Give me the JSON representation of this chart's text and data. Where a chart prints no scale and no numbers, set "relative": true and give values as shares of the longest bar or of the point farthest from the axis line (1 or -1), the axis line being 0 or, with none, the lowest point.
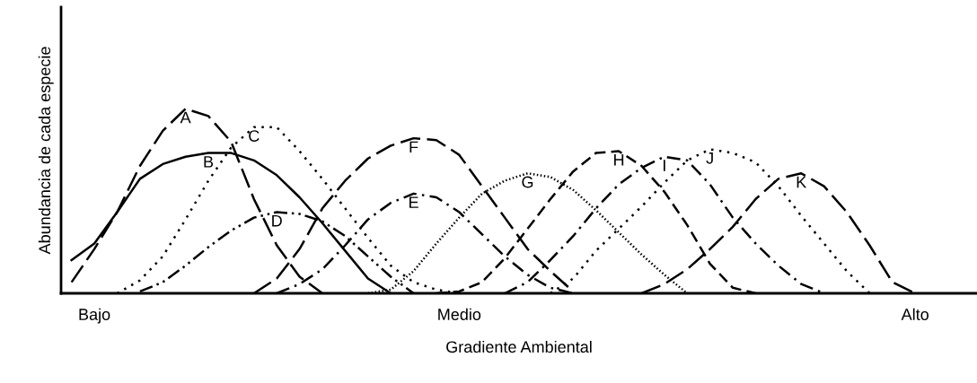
{
  "chart_data": {
    "type": "line",
    "relative": true,
    "xlabel": "Gradiente Ambiental",
    "ylabel": "Abundancia de cada especie",
    "categories": [
      null,
      "Bajo",
      null,
      null,
      null,
      null,
      null,
      null,
      null,
      null,
      null,
      null,
      null,
      null,
      null,
      null,
      null,
      "Medio",
      null,
      null,
      null,
      null,
      null,
      null,
      null,
      null,
      null,
      null,
      null,
      null,
      null,
      null,
      null,
      null,
      null,
      null,
      null,
      "Alto",
      null,
      null
    ],
    "grid": false,
    "legend": false,
    "marker": "none",
    "series": [
      {
        "name": "A",
        "color": "#000000",
        "line_style": "longdash",
        "values": [
          0.06,
          0.24,
          0.44,
          0.69,
          0.88,
          1,
          0.96,
          0.82,
          0.51,
          0.26,
          0.09,
          0,
          null,
          null,
          null,
          null,
          null,
          null,
          null,
          null,
          null,
          null,
          null,
          null,
          null,
          null,
          null,
          null,
          null,
          null,
          null,
          null,
          null,
          null,
          null,
          null,
          null,
          null,
          null,
          null
        ]
      },
      {
        "name": "B",
        "color": "#000000",
        "line_style": "solid",
        "values": [
          0.18,
          0.27,
          0.44,
          0.62,
          0.7,
          0.74,
          0.76,
          0.76,
          0.72,
          0.64,
          0.52,
          0.38,
          0.23,
          0.08,
          0,
          null,
          null,
          null,
          null,
          null,
          null,
          null,
          null,
          null,
          null,
          null,
          null,
          null,
          null,
          null,
          null,
          null,
          null,
          null,
          null,
          null,
          null,
          null,
          null,
          null
        ]
      },
      {
        "name": "C",
        "color": "#000000",
        "line_style": "dotted",
        "values": [
          null,
          null,
          0,
          0.07,
          0.2,
          0.4,
          0.61,
          0.79,
          0.9,
          0.9,
          0.77,
          0.62,
          0.46,
          0.3,
          0.15,
          0.06,
          0.02,
          0,
          null,
          null,
          null,
          null,
          null,
          null,
          null,
          null,
          null,
          null,
          null,
          null,
          null,
          null,
          null,
          null,
          null,
          null,
          null,
          null,
          null,
          null
        ]
      },
      {
        "name": "D",
        "color": "#000000",
        "line_style": "dashdotdot",
        "values": [
          null,
          null,
          null,
          0.01,
          0.06,
          0.15,
          0.25,
          0.34,
          0.41,
          0.44,
          0.43,
          0.39,
          0.31,
          0.2,
          0.09,
          0,
          null,
          null,
          null,
          null,
          null,
          null,
          null,
          null,
          null,
          null,
          null,
          null,
          null,
          null,
          null,
          null,
          null,
          null,
          null,
          null,
          null,
          null,
          null,
          null
        ]
      },
      {
        "name": "E",
        "color": "#000000",
        "line_style": "dashdot",
        "values": [
          null,
          null,
          null,
          null,
          null,
          null,
          null,
          null,
          null,
          0,
          0.05,
          0.13,
          0.26,
          0.4,
          0.49,
          0.54,
          0.52,
          0.44,
          0.32,
          0.2,
          0.1,
          0.03,
          0,
          null,
          null,
          null,
          null,
          null,
          null,
          null,
          null,
          null,
          null,
          null,
          null,
          null,
          null,
          null,
          null,
          null
        ]
      },
      {
        "name": "F",
        "color": "#000000",
        "line_style": "longdash",
        "values": [
          null,
          null,
          null,
          null,
          null,
          null,
          null,
          null,
          0,
          0.08,
          0.24,
          0.46,
          0.61,
          0.73,
          0.8,
          0.84,
          0.83,
          0.75,
          0.58,
          0.41,
          0.24,
          0.12,
          0.01,
          null,
          null,
          null,
          null,
          null,
          null,
          null,
          null,
          null,
          null,
          null,
          null,
          null,
          null,
          null,
          null,
          null
        ]
      },
      {
        "name": "G",
        "color": "#000000",
        "line_style": "densedotted",
        "values": [
          null,
          null,
          null,
          null,
          null,
          null,
          null,
          null,
          null,
          null,
          null,
          null,
          null,
          0,
          0.02,
          0.12,
          0.27,
          0.41,
          0.54,
          0.61,
          0.65,
          0.63,
          0.56,
          0.45,
          0.33,
          0.21,
          0.1,
          0,
          null,
          null,
          null,
          null,
          null,
          null,
          null,
          null,
          null,
          null,
          null,
          null
        ]
      },
      {
        "name": "H",
        "color": "#000000",
        "line_style": "dashed",
        "values": [
          null,
          null,
          null,
          null,
          null,
          null,
          null,
          null,
          null,
          null,
          null,
          null,
          null,
          null,
          null,
          null,
          0,
          0.01,
          0.06,
          0.19,
          0.35,
          0.51,
          0.66,
          0.76,
          0.77,
          0.69,
          0.55,
          0.37,
          0.16,
          0.03,
          0,
          null,
          null,
          null,
          null,
          null,
          null,
          null,
          null,
          null
        ]
      },
      {
        "name": "I",
        "color": "#000000",
        "line_style": "dashdot",
        "values": [
          null,
          null,
          null,
          null,
          null,
          null,
          null,
          null,
          null,
          null,
          null,
          null,
          null,
          null,
          null,
          null,
          null,
          null,
          null,
          0,
          0.06,
          0.18,
          0.31,
          0.46,
          0.59,
          0.68,
          0.74,
          0.72,
          0.59,
          0.41,
          0.27,
          0.15,
          0.05,
          0,
          null,
          null,
          null,
          null,
          null,
          null
        ]
      },
      {
        "name": "J",
        "color": "#000000",
        "line_style": "dotted",
        "values": [
          null,
          null,
          null,
          null,
          null,
          null,
          null,
          null,
          null,
          null,
          null,
          null,
          null,
          null,
          null,
          null,
          null,
          null,
          null,
          null,
          null,
          0,
          0.08,
          0.23,
          0.35,
          0.47,
          0.6,
          0.72,
          0.78,
          0.76,
          0.71,
          0.58,
          0.42,
          0.27,
          0.12,
          0,
          null,
          null,
          null,
          null
        ]
      },
      {
        "name": "K",
        "color": "#000000",
        "line_style": "longdash",
        "values": [
          null,
          null,
          null,
          null,
          null,
          null,
          null,
          null,
          null,
          null,
          null,
          null,
          null,
          null,
          null,
          null,
          null,
          null,
          null,
          null,
          null,
          null,
          null,
          null,
          null,
          0,
          0.05,
          0.13,
          0.24,
          0.36,
          0.51,
          0.62,
          0.65,
          0.58,
          0.44,
          0.26,
          0.06,
          0,
          null,
          null
        ]
      }
    ]
  }
}
